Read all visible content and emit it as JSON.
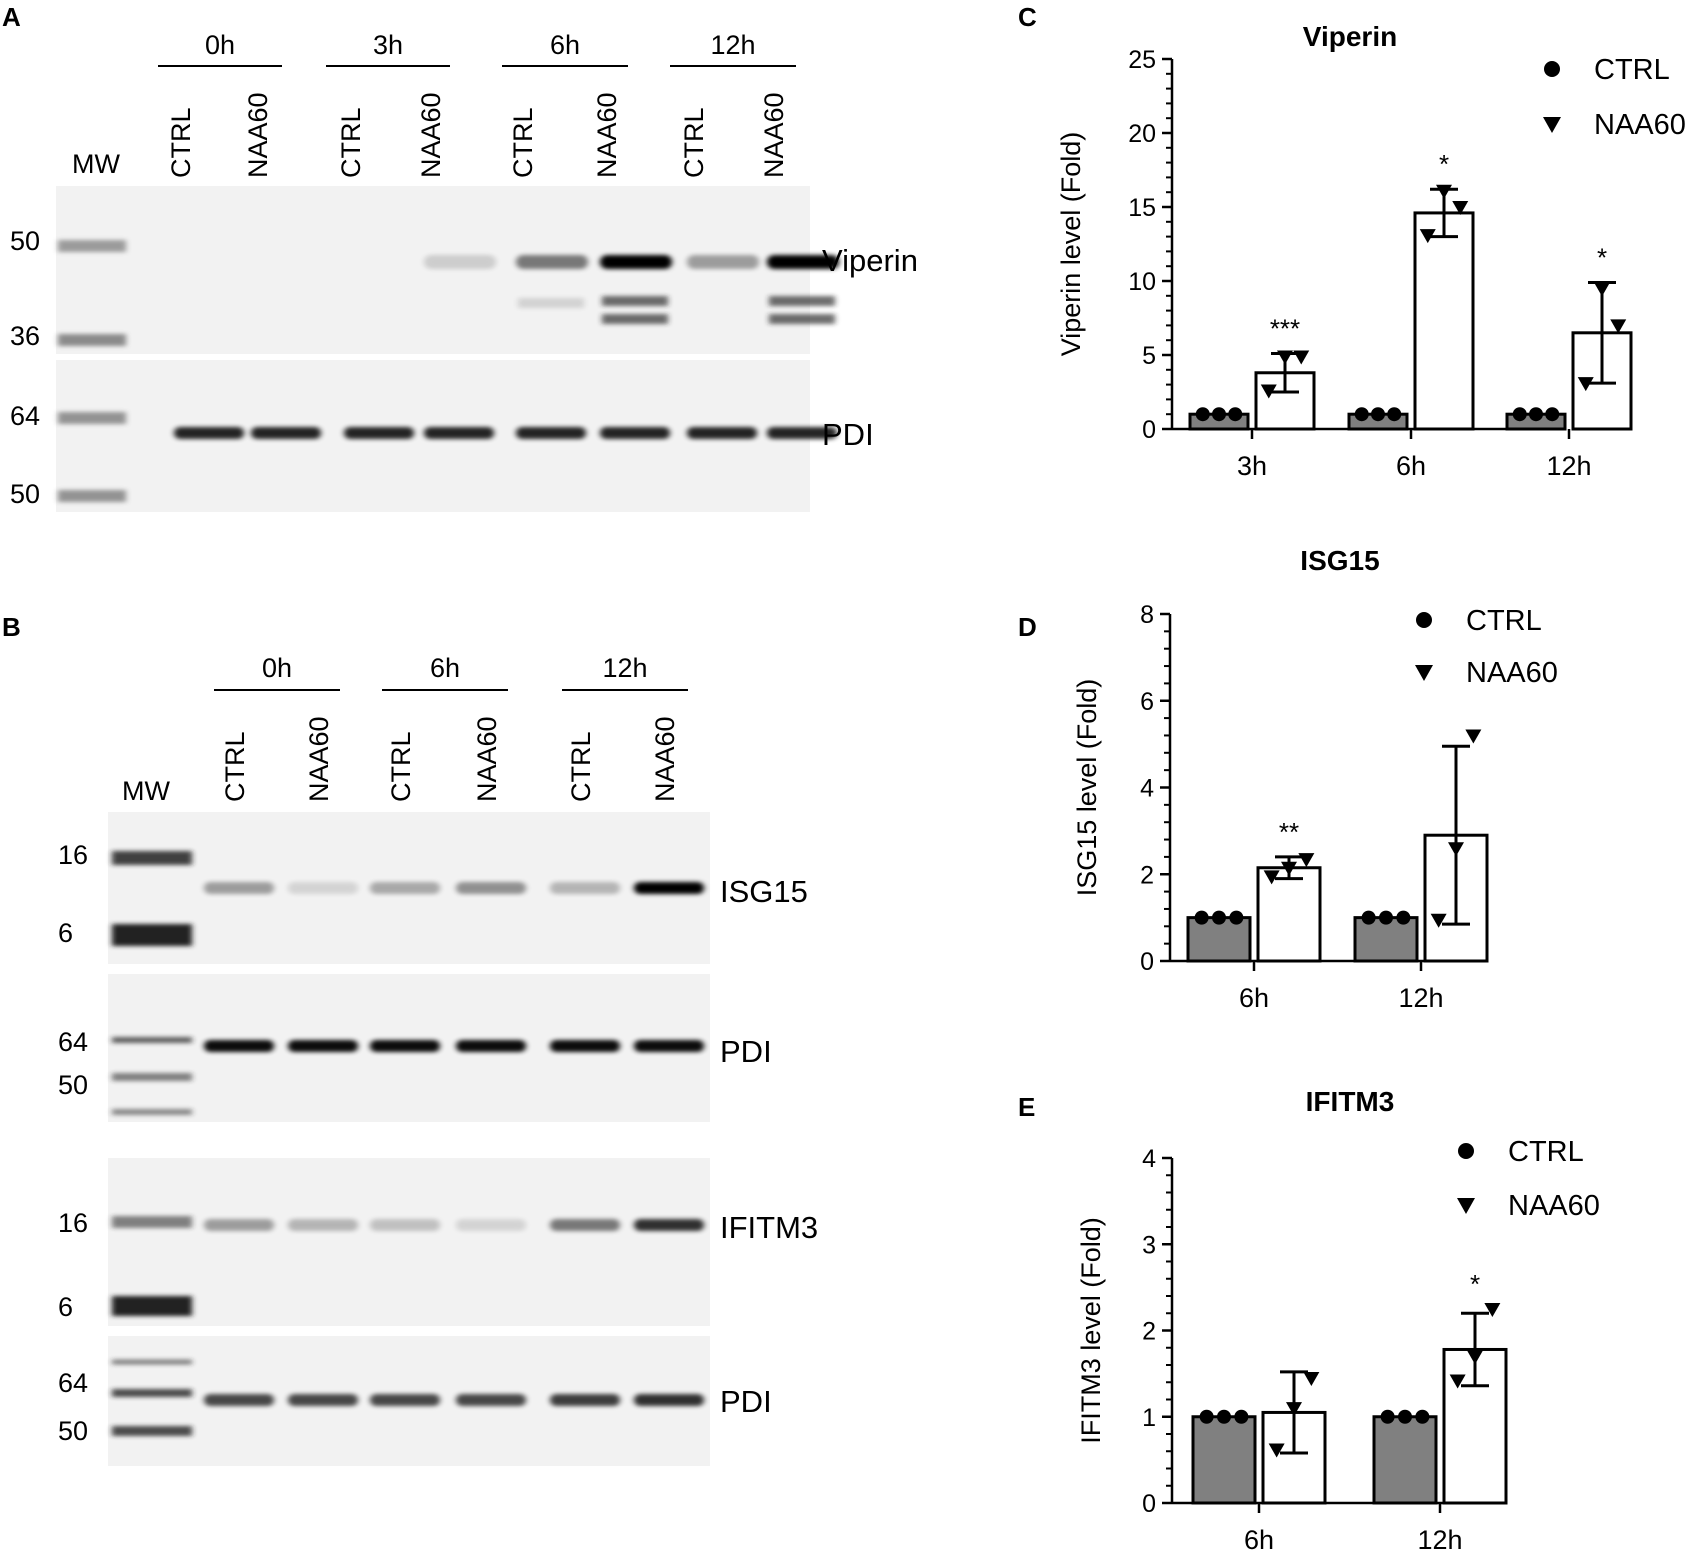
{
  "panel_labels": {
    "A": "A",
    "B": "B",
    "C": "C",
    "D": "D",
    "E": "E"
  },
  "blot_a": {
    "mw_label": "MW",
    "timepoints": [
      "0h",
      "3h",
      "6h",
      "12h"
    ],
    "lanes": [
      "CTRL",
      "NAA60",
      "CTRL",
      "NAA60",
      "CTRL",
      "NAA60",
      "CTRL",
      "NAA60"
    ],
    "upper": {
      "label": "Viperin",
      "markers": [
        "50",
        "36"
      ]
    },
    "lower": {
      "label": "PDI",
      "markers": [
        "64",
        "50"
      ]
    }
  },
  "blot_b": {
    "mw_label": "MW",
    "timepoints": [
      "0h",
      "6h",
      "12h"
    ],
    "lanes": [
      "CTRL",
      "NAA60",
      "CTRL",
      "NAA60",
      "CTRL",
      "NAA60"
    ],
    "strips": [
      {
        "label": "ISG15",
        "markers": [
          "16",
          "6"
        ]
      },
      {
        "label": "PDI",
        "markers": [
          "64",
          "50"
        ]
      },
      {
        "label": "IFITM3",
        "markers": [
          "16",
          "6"
        ]
      },
      {
        "label": "PDI",
        "markers": [
          "64",
          "50"
        ]
      }
    ]
  },
  "colors": {
    "ctrl_bar": "#808080",
    "naa60_bar": "#ffffff",
    "axis": "#000000"
  },
  "chart_data": [
    {
      "panel": "C",
      "type": "bar",
      "title": "Viperin",
      "ylabel": "Viperin level (Fold)",
      "xlabel": "",
      "categories": [
        "3h",
        "6h",
        "12h"
      ],
      "ylim": [
        0,
        25
      ],
      "yticks": [
        "0",
        "5",
        "10",
        "15",
        "20",
        "25"
      ],
      "legend_position": "top-right",
      "series": [
        {
          "name": "CTRL",
          "marker": "circle",
          "values": [
            1,
            1,
            1
          ],
          "sd": [
            0,
            0,
            0
          ],
          "points": [
            [
              1,
              1,
              1
            ],
            [
              1,
              1,
              1
            ],
            [
              1,
              1,
              1
            ]
          ]
        },
        {
          "name": "NAA60",
          "marker": "triangle",
          "values": [
            3.8,
            14.6,
            6.5
          ],
          "sd": [
            1.3,
            1.6,
            3.4
          ],
          "points": [
            [
              2.6,
              4.9,
              4.9
            ],
            [
              13.1,
              16.1,
              15.0
            ],
            [
              3.1,
              9.5,
              7.0
            ]
          ]
        }
      ],
      "significance": [
        "***",
        "*",
        "*"
      ]
    },
    {
      "panel": "D",
      "type": "bar",
      "title": "ISG15",
      "ylabel": "ISG15 level (Fold)",
      "xlabel": "",
      "categories": [
        "6h",
        "12h"
      ],
      "ylim": [
        0,
        8
      ],
      "yticks": [
        "0",
        "2",
        "4",
        "6",
        "8"
      ],
      "legend_position": "top-right",
      "series": [
        {
          "name": "CTRL",
          "marker": "circle",
          "values": [
            1,
            1
          ],
          "sd": [
            0,
            0
          ],
          "points": [
            [
              1,
              1,
              1
            ],
            [
              1,
              1,
              1
            ]
          ]
        },
        {
          "name": "NAA60",
          "marker": "triangle",
          "values": [
            2.15,
            2.9
          ],
          "sd": [
            0.25,
            2.05
          ],
          "points": [
            [
              1.95,
              2.15,
              2.35
            ],
            [
              0.95,
              2.6,
              5.2
            ]
          ]
        }
      ],
      "significance": [
        "**",
        ""
      ]
    },
    {
      "panel": "E",
      "type": "bar",
      "title": "IFITM3",
      "ylabel": "IFITM3 level (Fold)",
      "xlabel": "",
      "categories": [
        "6h",
        "12h"
      ],
      "ylim": [
        0,
        4
      ],
      "yticks": [
        "0",
        "1",
        "2",
        "3",
        "4"
      ],
      "legend_position": "top-right",
      "series": [
        {
          "name": "CTRL",
          "marker": "circle",
          "values": [
            1,
            1
          ],
          "sd": [
            0,
            0
          ],
          "points": [
            [
              1,
              1,
              1
            ],
            [
              1,
              1,
              1
            ]
          ]
        },
        {
          "name": "NAA60",
          "marker": "triangle",
          "values": [
            1.05,
            1.78
          ],
          "sd": [
            0.47,
            0.42
          ],
          "points": [
            [
              0.62,
              1.1,
              1.45
            ],
            [
              1.42,
              1.7,
              2.25
            ]
          ]
        }
      ],
      "significance": [
        "",
        "*"
      ]
    }
  ]
}
